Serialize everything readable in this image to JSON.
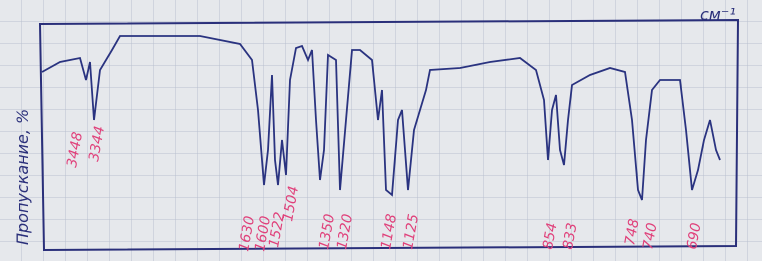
{
  "axis_label": "Пропускание, %",
  "unit": "см⁻¹",
  "peaks": [
    3448,
    3344,
    1630,
    1600,
    1522,
    1504,
    1350,
    1320,
    1148,
    1125,
    854,
    833,
    748,
    740,
    690
  ]
}
